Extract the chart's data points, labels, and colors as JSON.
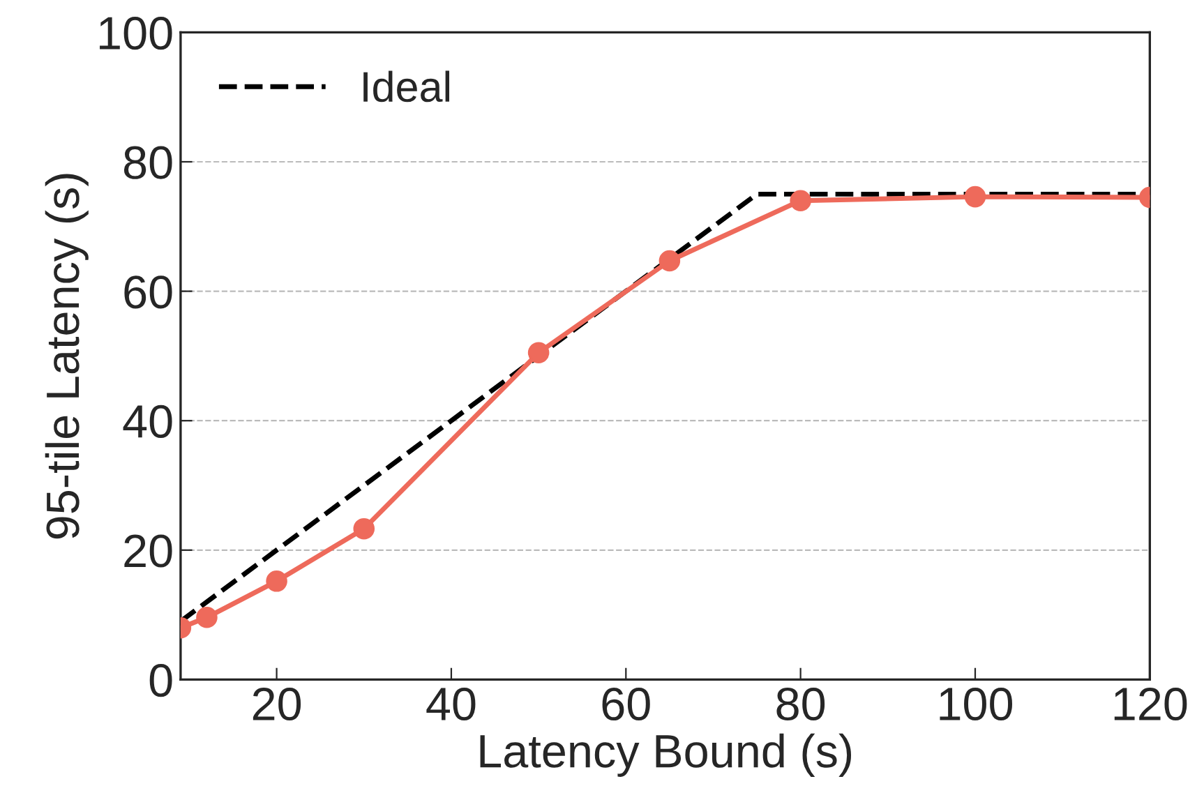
{
  "chart_data": {
    "type": "line",
    "xlabel": "Latency Bound (s)",
    "ylabel": "95-tile Latency (s)",
    "xlim": [
      9,
      120
    ],
    "xticks": [
      20,
      40,
      60,
      80,
      100,
      120
    ],
    "ylim": [
      0,
      100
    ],
    "yticks": [
      0,
      20,
      40,
      60,
      80,
      100
    ],
    "grid": "y",
    "legend": "top left",
    "series": [
      {
        "name": "Ideal",
        "color": "#000000",
        "line_style": "dashed",
        "marker": "none",
        "x": [
          9,
          75,
          120
        ],
        "values": [
          9,
          75,
          75
        ]
      },
      {
        "color": "#ee6a5b",
        "line_style": "solid",
        "marker": "circle",
        "x": [
          9,
          12,
          20,
          30,
          50,
          65,
          80,
          100,
          120
        ],
        "values": [
          8,
          9.6,
          15.2,
          23.3,
          50.5,
          64.7,
          74,
          74.6,
          74.5
        ]
      }
    ]
  }
}
